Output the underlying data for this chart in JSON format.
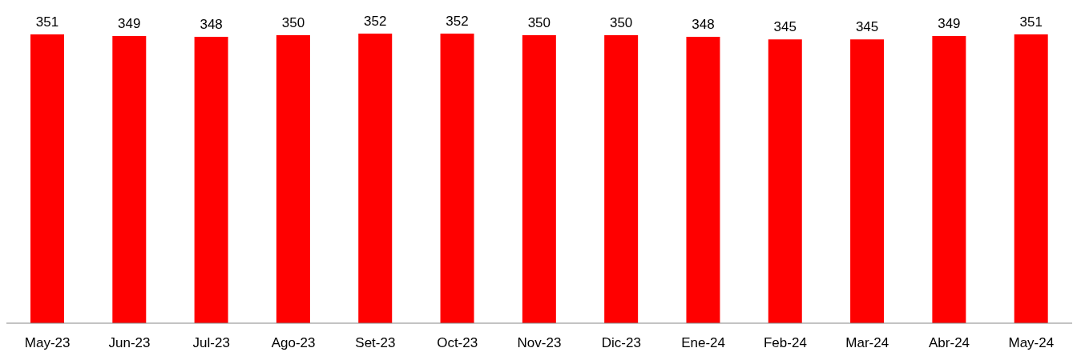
{
  "chart_data": {
    "type": "bar",
    "categories": [
      "May-23",
      "Jun-23",
      "Jul-23",
      "Ago-23",
      "Set-23",
      "Oct-23",
      "Nov-23",
      "Dic-23",
      "Ene-24",
      "Feb-24",
      "Mar-24",
      "Abr-24",
      "May-24"
    ],
    "values": [
      351,
      349,
      348,
      350,
      352,
      352,
      350,
      350,
      348,
      345,
      345,
      349,
      351
    ],
    "color": "#ff0000",
    "data_labels": true,
    "grid": false,
    "legend": false
  }
}
